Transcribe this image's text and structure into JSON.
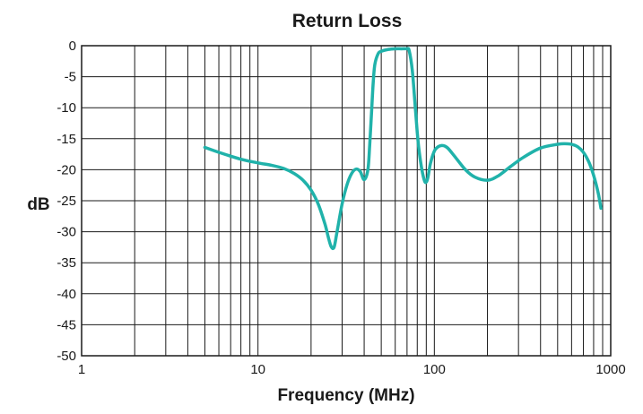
{
  "chart_data": {
    "type": "line",
    "title": "Return Loss",
    "xlabel": "Frequency (MHz)",
    "ylabel": "dB",
    "x_scale": "log",
    "xlim": [
      1,
      1000
    ],
    "ylim": [
      -50,
      0
    ],
    "grid": true,
    "x_ticks": [
      {
        "value": 1,
        "label": "1"
      },
      {
        "value": 10,
        "label": "10"
      },
      {
        "value": 100,
        "label": "100"
      },
      {
        "value": 1000,
        "label": "1000"
      }
    ],
    "y_ticks": [
      {
        "value": 0,
        "label": "0"
      },
      {
        "value": -5,
        "label": "-5"
      },
      {
        "value": -10,
        "label": "-10"
      },
      {
        "value": -15,
        "label": "-15"
      },
      {
        "value": -20,
        "label": "-20"
      },
      {
        "value": -25,
        "label": "-25"
      },
      {
        "value": -30,
        "label": "-30"
      },
      {
        "value": -35,
        "label": "-35"
      },
      {
        "value": -40,
        "label": "-40"
      },
      {
        "value": -45,
        "label": "-45"
      },
      {
        "value": -50,
        "label": "-50"
      }
    ],
    "series": [
      {
        "color": "#20b2aa",
        "x": [
          5,
          6,
          8,
          10,
          12,
          14,
          16,
          18,
          20,
          22,
          24,
          25,
          26,
          27,
          28,
          30,
          32,
          34,
          36,
          38,
          40,
          42,
          43,
          44,
          45,
          46,
          48,
          50,
          55,
          60,
          65,
          70,
          72,
          75,
          78,
          80,
          82,
          85,
          88,
          90,
          92,
          95,
          100,
          105,
          110,
          115,
          120,
          130,
          150,
          170,
          200,
          230,
          270,
          320,
          400,
          500,
          550,
          600,
          650,
          700,
          750,
          800,
          850,
          880
        ],
        "y": [
          -16.4,
          -17.2,
          -18.3,
          -18.9,
          -19.3,
          -19.8,
          -20.6,
          -21.7,
          -23.3,
          -25.6,
          -28.8,
          -30.8,
          -32.4,
          -32.5,
          -30.2,
          -25.5,
          -22.4,
          -20.6,
          -19.9,
          -20.3,
          -21.6,
          -20,
          -16,
          -11,
          -6,
          -3,
          -1.3,
          -0.9,
          -0.6,
          -0.5,
          -0.5,
          -0.5,
          -0.8,
          -4,
          -10,
          -14,
          -17,
          -20,
          -21.8,
          -22,
          -21.2,
          -19,
          -17,
          -16.3,
          -16.1,
          -16.2,
          -16.6,
          -17.8,
          -20,
          -21.2,
          -21.7,
          -21,
          -19.5,
          -18,
          -16.5,
          -15.9,
          -15.8,
          -15.9,
          -16.3,
          -17.2,
          -18.7,
          -20.9,
          -23.8,
          -26.2
        ]
      }
    ]
  }
}
